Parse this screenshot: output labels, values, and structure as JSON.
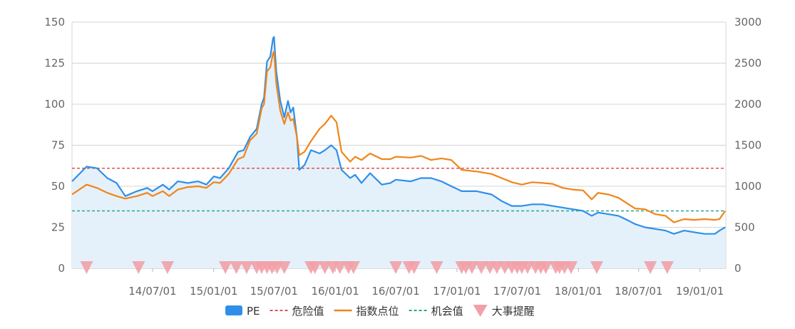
{
  "chart_data": {
    "type": "line",
    "title": "",
    "y_left": {
      "range": [
        0,
        150
      ],
      "ticks": [
        "0",
        "25",
        "50",
        "75",
        "100",
        "125",
        "150"
      ]
    },
    "y_right": {
      "range": [
        0,
        3000
      ],
      "ticks": [
        "0",
        "500",
        "1000",
        "1500",
        "2000",
        "2500",
        "3000"
      ]
    },
    "x": {
      "range": [
        "2013-11-01",
        "2019-03-20"
      ],
      "tick_dates": [
        "2014-07-01",
        "2015-01-01",
        "2015-07-01",
        "2016-01-01",
        "2016-07-01",
        "2017-01-01",
        "2017-07-01",
        "2018-01-01",
        "2018-07-01",
        "2019-01-01"
      ],
      "tick_labels": [
        "14/07/01",
        "15/01/01",
        "15/07/01",
        "16/01/01",
        "16/07/01",
        "17/01/01",
        "17/07/01",
        "18/01/01",
        "18/07/01",
        "19/01/01"
      ]
    },
    "grid": "horizontal",
    "legend_position": "bottom",
    "series": [
      {
        "name": "PE",
        "type": "area",
        "axis": "left",
        "color": "#2f8fe8",
        "fill": "#e4f1fb",
        "points": [
          [
            "2013-11-01",
            53
          ],
          [
            "2013-12-15",
            62
          ],
          [
            "2014-01-15",
            61
          ],
          [
            "2014-02-15",
            55
          ],
          [
            "2014-03-15",
            52
          ],
          [
            "2014-04-10",
            44
          ],
          [
            "2014-05-15",
            47
          ],
          [
            "2014-06-15",
            49
          ],
          [
            "2014-07-01",
            47
          ],
          [
            "2014-08-01",
            51
          ],
          [
            "2014-08-20",
            48
          ],
          [
            "2014-09-15",
            53
          ],
          [
            "2014-10-15",
            52
          ],
          [
            "2014-11-15",
            53
          ],
          [
            "2014-12-10",
            51
          ],
          [
            "2015-01-01",
            56
          ],
          [
            "2015-01-20",
            55
          ],
          [
            "2015-02-15",
            61
          ],
          [
            "2015-03-15",
            71
          ],
          [
            "2015-04-01",
            72
          ],
          [
            "2015-04-20",
            80
          ],
          [
            "2015-05-10",
            85
          ],
          [
            "2015-05-25",
            100
          ],
          [
            "2015-06-01",
            104
          ],
          [
            "2015-06-10",
            126
          ],
          [
            "2015-06-20",
            129
          ],
          [
            "2015-06-28",
            140
          ],
          [
            "2015-07-01",
            141
          ],
          [
            "2015-07-08",
            120
          ],
          [
            "2015-07-20",
            102
          ],
          [
            "2015-08-01",
            92
          ],
          [
            "2015-08-12",
            102
          ],
          [
            "2015-08-20",
            95
          ],
          [
            "2015-08-28",
            98
          ],
          [
            "2015-09-08",
            80
          ],
          [
            "2015-09-15",
            60
          ],
          [
            "2015-10-01",
            63
          ],
          [
            "2015-10-20",
            72
          ],
          [
            "2015-11-15",
            70
          ],
          [
            "2015-12-01",
            72
          ],
          [
            "2015-12-20",
            75
          ],
          [
            "2016-01-05",
            72
          ],
          [
            "2016-01-20",
            60
          ],
          [
            "2016-02-15",
            55
          ],
          [
            "2016-03-01",
            57
          ],
          [
            "2016-03-20",
            52
          ],
          [
            "2016-04-15",
            58
          ],
          [
            "2016-05-20",
            51
          ],
          [
            "2016-06-15",
            52
          ],
          [
            "2016-07-01",
            54
          ],
          [
            "2016-08-15",
            53
          ],
          [
            "2016-09-15",
            55
          ],
          [
            "2016-10-15",
            55
          ],
          [
            "2016-11-15",
            53
          ],
          [
            "2016-12-15",
            50
          ],
          [
            "2017-01-15",
            47
          ],
          [
            "2017-03-01",
            47
          ],
          [
            "2017-04-15",
            45
          ],
          [
            "2017-05-15",
            41
          ],
          [
            "2017-06-15",
            38
          ],
          [
            "2017-07-15",
            38
          ],
          [
            "2017-08-15",
            39
          ],
          [
            "2017-09-15",
            39
          ],
          [
            "2017-10-15",
            38
          ],
          [
            "2017-11-15",
            37
          ],
          [
            "2017-12-15",
            36
          ],
          [
            "2018-01-15",
            35
          ],
          [
            "2018-02-10",
            32
          ],
          [
            "2018-03-01",
            34
          ],
          [
            "2018-04-01",
            33
          ],
          [
            "2018-05-01",
            32
          ],
          [
            "2018-06-01",
            29
          ],
          [
            "2018-06-20",
            27
          ],
          [
            "2018-07-20",
            25
          ],
          [
            "2018-08-20",
            24
          ],
          [
            "2018-09-20",
            23
          ],
          [
            "2018-10-15",
            21
          ],
          [
            "2018-11-15",
            23
          ],
          [
            "2018-12-15",
            22
          ],
          [
            "2019-01-15",
            21
          ],
          [
            "2019-02-15",
            21
          ],
          [
            "2019-03-01",
            23
          ],
          [
            "2019-03-18",
            25
          ]
        ]
      },
      {
        "name": "危险值",
        "type": "dashed-line",
        "axis": "left",
        "color": "#e05252",
        "value": 61
      },
      {
        "name": "指数点位",
        "type": "line",
        "axis": "right",
        "color": "#f08519",
        "points": [
          [
            "2013-11-01",
            900
          ],
          [
            "2013-12-15",
            1020
          ],
          [
            "2014-01-15",
            980
          ],
          [
            "2014-02-15",
            920
          ],
          [
            "2014-03-15",
            880
          ],
          [
            "2014-04-10",
            850
          ],
          [
            "2014-05-15",
            880
          ],
          [
            "2014-06-15",
            920
          ],
          [
            "2014-07-01",
            880
          ],
          [
            "2014-08-01",
            940
          ],
          [
            "2014-08-20",
            880
          ],
          [
            "2014-09-15",
            960
          ],
          [
            "2014-10-15",
            990
          ],
          [
            "2014-11-15",
            1000
          ],
          [
            "2014-12-10",
            980
          ],
          [
            "2015-01-01",
            1050
          ],
          [
            "2015-01-20",
            1040
          ],
          [
            "2015-02-15",
            1150
          ],
          [
            "2015-03-15",
            1330
          ],
          [
            "2015-04-01",
            1360
          ],
          [
            "2015-04-20",
            1560
          ],
          [
            "2015-05-10",
            1640
          ],
          [
            "2015-05-25",
            1950
          ],
          [
            "2015-06-01",
            2000
          ],
          [
            "2015-06-10",
            2400
          ],
          [
            "2015-06-20",
            2450
          ],
          [
            "2015-06-28",
            2620
          ],
          [
            "2015-07-01",
            2640
          ],
          [
            "2015-07-08",
            2250
          ],
          [
            "2015-07-20",
            1920
          ],
          [
            "2015-08-01",
            1760
          ],
          [
            "2015-08-12",
            1900
          ],
          [
            "2015-08-20",
            1800
          ],
          [
            "2015-08-28",
            1820
          ],
          [
            "2015-09-08",
            1600
          ],
          [
            "2015-09-15",
            1380
          ],
          [
            "2015-10-01",
            1420
          ],
          [
            "2015-10-20",
            1550
          ],
          [
            "2015-11-15",
            1700
          ],
          [
            "2015-12-01",
            1760
          ],
          [
            "2015-12-20",
            1860
          ],
          [
            "2016-01-05",
            1780
          ],
          [
            "2016-01-20",
            1420
          ],
          [
            "2016-02-15",
            1300
          ],
          [
            "2016-03-01",
            1360
          ],
          [
            "2016-03-20",
            1320
          ],
          [
            "2016-04-15",
            1400
          ],
          [
            "2016-05-20",
            1330
          ],
          [
            "2016-06-15",
            1330
          ],
          [
            "2016-07-01",
            1360
          ],
          [
            "2016-08-15",
            1350
          ],
          [
            "2016-09-15",
            1370
          ],
          [
            "2016-10-15",
            1320
          ],
          [
            "2016-11-15",
            1340
          ],
          [
            "2016-12-15",
            1320
          ],
          [
            "2017-01-15",
            1200
          ],
          [
            "2017-03-01",
            1180
          ],
          [
            "2017-04-15",
            1150
          ],
          [
            "2017-05-15",
            1100
          ],
          [
            "2017-06-15",
            1050
          ],
          [
            "2017-07-15",
            1020
          ],
          [
            "2017-08-15",
            1050
          ],
          [
            "2017-09-15",
            1040
          ],
          [
            "2017-10-15",
            1030
          ],
          [
            "2017-11-15",
            980
          ],
          [
            "2017-12-15",
            960
          ],
          [
            "2018-01-15",
            950
          ],
          [
            "2018-02-10",
            840
          ],
          [
            "2018-03-01",
            920
          ],
          [
            "2018-04-01",
            900
          ],
          [
            "2018-05-01",
            860
          ],
          [
            "2018-06-01",
            780
          ],
          [
            "2018-06-20",
            730
          ],
          [
            "2018-07-20",
            720
          ],
          [
            "2018-08-20",
            660
          ],
          [
            "2018-09-20",
            640
          ],
          [
            "2018-10-15",
            560
          ],
          [
            "2018-11-15",
            600
          ],
          [
            "2018-12-15",
            590
          ],
          [
            "2019-01-15",
            600
          ],
          [
            "2019-02-15",
            590
          ],
          [
            "2019-03-01",
            600
          ],
          [
            "2019-03-18",
            700
          ]
        ]
      },
      {
        "name": "机会值",
        "type": "dashed-line",
        "axis": "left",
        "color": "#2aa58e",
        "value": 35
      },
      {
        "name": "大事提醒",
        "type": "markers",
        "marker": "triangle-down",
        "color": "#f2a0a6",
        "dates": [
          "2013-12-15",
          "2014-05-20",
          "2014-08-15",
          "2015-02-05",
          "2015-03-10",
          "2015-04-10",
          "2015-05-10",
          "2015-05-25",
          "2015-06-10",
          "2015-06-25",
          "2015-07-10",
          "2015-08-01",
          "2015-10-20",
          "2015-11-01",
          "2015-12-01",
          "2015-12-25",
          "2016-01-15",
          "2016-02-10",
          "2016-02-25",
          "2016-07-01",
          "2016-08-10",
          "2016-08-25",
          "2016-11-01",
          "2017-01-15",
          "2017-01-28",
          "2017-02-15",
          "2017-03-15",
          "2017-04-10",
          "2017-05-01",
          "2017-05-25",
          "2017-06-15",
          "2017-07-01",
          "2017-07-15",
          "2017-08-01",
          "2017-08-25",
          "2017-09-10",
          "2017-09-25",
          "2017-10-25",
          "2017-11-05",
          "2017-11-20",
          "2017-12-10",
          "2018-02-25",
          "2018-08-05",
          "2018-09-25"
        ]
      }
    ]
  }
}
